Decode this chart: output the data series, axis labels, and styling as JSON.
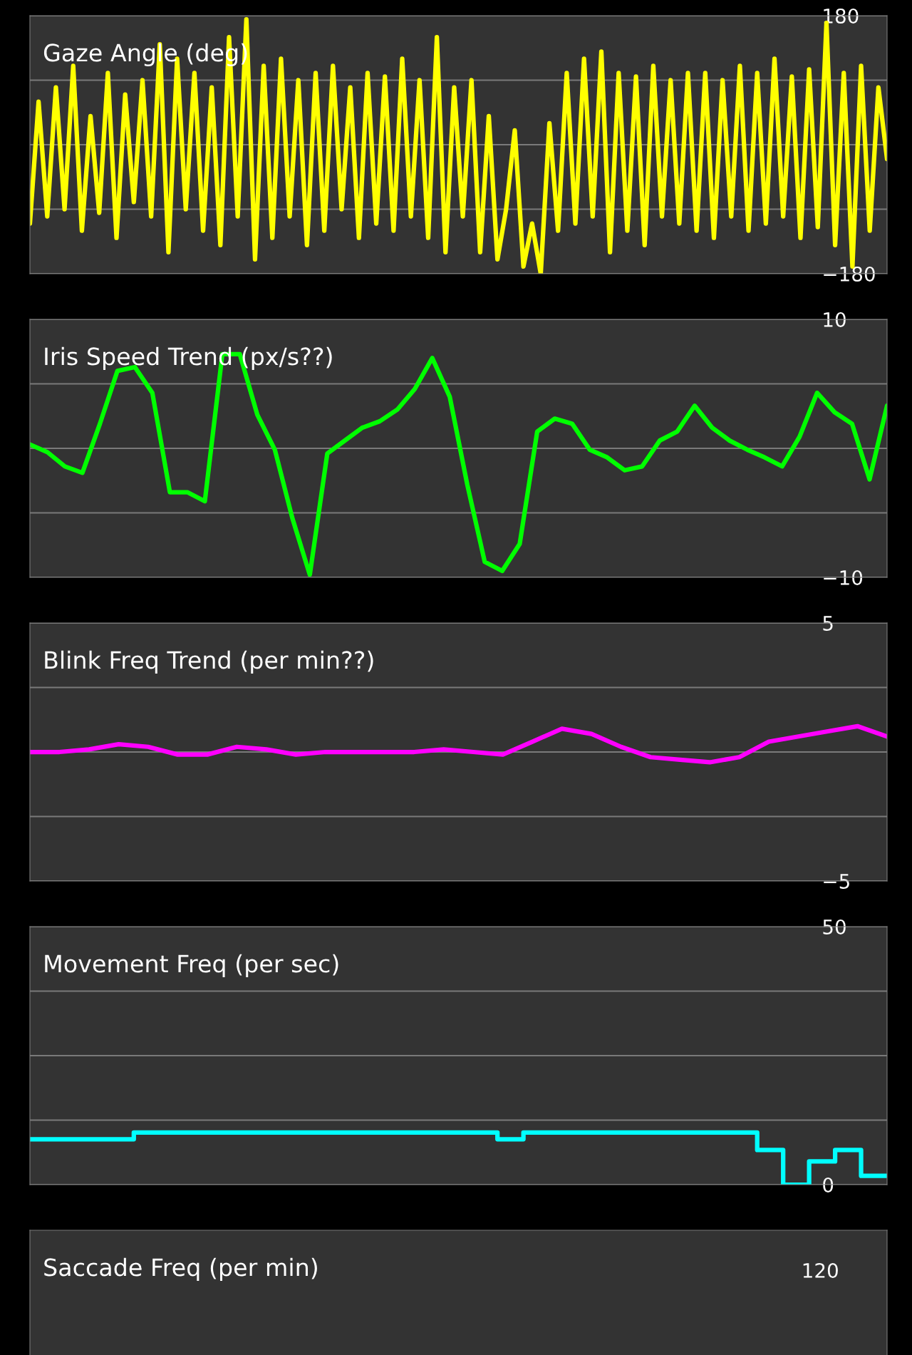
{
  "chart_data": [
    {
      "type": "line",
      "title": "Gaze Angle (deg)",
      "categories": [
        null,
        null,
        null,
        null,
        null,
        null,
        null,
        null,
        null,
        null,
        null,
        null,
        null,
        null,
        null,
        null,
        null,
        null,
        null,
        null,
        null,
        null,
        null,
        null,
        null,
        null,
        null,
        null,
        null,
        null,
        null,
        null,
        null,
        null,
        null,
        null,
        null,
        null,
        null,
        null,
        null,
        null,
        null,
        null,
        null,
        null,
        null,
        null,
        null,
        null,
        null,
        null,
        null,
        null,
        null,
        null,
        null,
        null,
        null,
        null,
        null,
        null,
        null,
        null,
        null,
        null,
        null,
        null,
        null,
        null,
        null,
        null,
        null,
        null,
        null,
        null,
        null,
        null,
        null,
        null,
        null,
        null,
        null,
        null,
        null,
        null,
        null,
        null,
        null,
        null,
        null,
        null,
        null,
        null,
        null,
        null,
        null,
        null,
        null,
        null
      ],
      "series": [
        {
          "color": "#ffff00",
          "values": [
            -110,
            60,
            -100,
            80,
            -90,
            110,
            -120,
            40,
            -95,
            100,
            -130,
            70,
            -80,
            90,
            -100,
            140,
            -150,
            120,
            -90,
            100,
            -120,
            80,
            -140,
            150,
            -100,
            175,
            -160,
            110,
            -130,
            120,
            -100,
            90,
            -140,
            100,
            -120,
            110,
            -90,
            80,
            -130,
            100,
            -110,
            95,
            -120,
            120,
            -100,
            90,
            -130,
            150,
            -150,
            80,
            -100,
            90,
            -150,
            40,
            -160,
            -90,
            20,
            -170,
            -110,
            -180,
            30,
            -120,
            100,
            -110,
            120,
            -100,
            130,
            -150,
            100,
            -120,
            95,
            -140,
            110,
            -100,
            90,
            -110,
            100,
            -120,
            100,
            -130,
            90,
            -100,
            110,
            -120,
            100,
            -110,
            120,
            -100,
            95,
            -130,
            105,
            -115,
            170,
            -140,
            100,
            -170,
            110,
            -120,
            80,
            -20
          ]
        }
      ],
      "ylim": [
        -180,
        180
      ],
      "yticks": [
        {
          "value": -180,
          "label": "−180"
        },
        {
          "value": -90,
          "label": null
        },
        {
          "value": 0,
          "label": null
        },
        {
          "value": 90,
          "label": null
        },
        180
      ],
      "grid": "y"
    },
    {
      "type": "line",
      "title": "Iris Speed Trend (px/s??)",
      "categories": [
        null,
        null,
        null,
        null,
        null,
        null,
        null,
        null,
        null,
        null,
        null,
        null,
        null,
        null,
        null,
        null,
        null,
        null,
        null,
        null,
        null,
        null,
        null,
        null,
        null,
        null,
        null,
        null,
        null,
        null,
        null,
        null,
        null,
        null,
        null,
        null,
        null,
        null,
        null,
        null,
        null,
        null,
        null,
        null,
        null,
        null,
        null,
        null,
        null,
        null
      ],
      "series": [
        {
          "color": "#00ff00",
          "values": [
            0.3,
            -0.3,
            -1.4,
            -1.9,
            1.9,
            6.0,
            6.3,
            4.3,
            -3.4,
            -3.4,
            -4.1,
            7.3,
            7.3,
            2.6,
            -0.1,
            -5.4,
            -9.8,
            -0.4,
            0.6,
            1.6,
            2.1,
            3.0,
            4.6,
            7.0,
            4.0,
            -2.8,
            -8.8,
            -9.5,
            -7.4,
            1.3,
            2.3,
            1.9,
            -0.1,
            -0.7,
            -1.7,
            -1.4,
            0.6,
            1.3,
            3.3,
            1.6,
            0.6,
            -0.1,
            -0.7,
            -1.4,
            0.9,
            4.3,
            2.8,
            1.9,
            -2.4,
            3.3
          ]
        }
      ],
      "ylim": [
        -10,
        10
      ],
      "yticks": [
        {
          "value": -10,
          "label": "−10"
        },
        {
          "value": -5,
          "label": null
        },
        {
          "value": 0,
          "label": null
        },
        {
          "value": 5,
          "label": null
        },
        10
      ],
      "grid": "y"
    },
    {
      "type": "line",
      "title": "Blink Freq Trend (per min??)",
      "categories": [
        null,
        null,
        null,
        null,
        null,
        null,
        null,
        null,
        null,
        null,
        null,
        null,
        null,
        null,
        null,
        null,
        null,
        null,
        null,
        null,
        null,
        null,
        null,
        null,
        null,
        null,
        null,
        null,
        null,
        null
      ],
      "series": [
        {
          "color": "#ff00ff",
          "values": [
            0.0,
            0.0,
            0.1,
            0.3,
            0.2,
            -0.1,
            -0.1,
            0.2,
            0.1,
            -0.1,
            0.0,
            0.0,
            0.0,
            0.0,
            0.1,
            0.0,
            -0.1,
            0.4,
            0.9,
            0.7,
            0.2,
            -0.2,
            -0.3,
            -0.4,
            -0.2,
            0.4,
            0.6,
            0.8,
            1.0,
            0.6
          ]
        }
      ],
      "ylim": [
        -5,
        5
      ],
      "yticks": [
        {
          "value": -5,
          "label": "−5"
        },
        {
          "value": -2.5,
          "label": null
        },
        {
          "value": 0,
          "label": null
        },
        {
          "value": 2.5,
          "label": null
        },
        5
      ],
      "grid": "y"
    },
    {
      "type": "step",
      "title": "Movement Freq (per sec)",
      "categories": [
        null,
        null,
        null,
        null,
        null,
        null,
        null,
        null,
        null,
        null,
        null,
        null,
        null,
        null,
        null,
        null,
        null,
        null,
        null,
        null,
        null,
        null,
        null,
        null,
        null,
        null,
        null,
        null,
        null,
        null,
        null,
        null,
        null,
        null
      ],
      "series": [
        {
          "color": "#00ffff",
          "values": [
            8.8,
            8.8,
            8.8,
            8.8,
            10.1,
            10.1,
            10.1,
            10.1,
            10.1,
            10.1,
            10.1,
            10.1,
            10.1,
            10.1,
            10.1,
            10.1,
            10.1,
            10.1,
            8.8,
            10.1,
            10.1,
            10.1,
            10.1,
            10.1,
            10.1,
            10.1,
            10.1,
            10.1,
            6.7,
            0,
            4.5,
            6.7,
            1.7,
            1.7
          ]
        }
      ],
      "ylim": [
        0,
        50
      ],
      "yticks": [
        0,
        {
          "value": 12.5,
          "label": null
        },
        {
          "value": 25,
          "label": null
        },
        {
          "value": 37.5,
          "label": null
        },
        50
      ],
      "grid": "y"
    },
    {
      "type": "other",
      "title": "Saccade Freq (per min)",
      "annotations": [
        "120"
      ]
    }
  ]
}
